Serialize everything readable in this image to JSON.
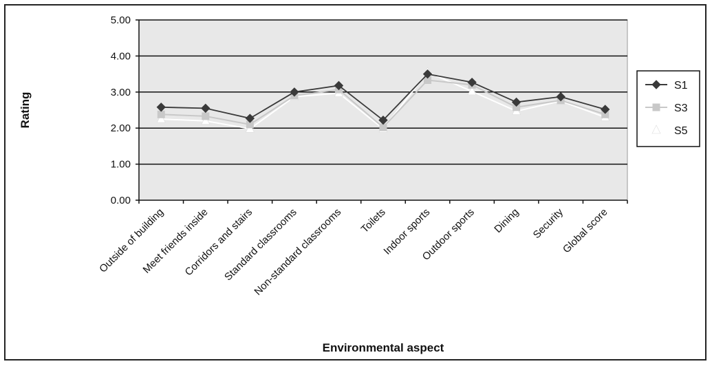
{
  "chart_data": {
    "type": "line",
    "categories": [
      "Outside of building",
      "Meet friends inside",
      "Corridors and stairs",
      "Standard classrooms",
      "Non-standard classrooms",
      "Toilets",
      "Indoor sports",
      "Outdoor sports",
      "Dining",
      "Security",
      "Global score"
    ],
    "series": [
      {
        "name": "S1",
        "color": "#3a3a3a",
        "marker": "diamond",
        "values": [
          2.58,
          2.55,
          2.27,
          3.0,
          3.18,
          2.22,
          3.5,
          3.27,
          2.72,
          2.87,
          2.52
        ]
      },
      {
        "name": "S3",
        "color": "#c8c8c8",
        "marker": "square",
        "values": [
          2.38,
          2.33,
          2.1,
          2.9,
          3.07,
          2.02,
          3.33,
          3.2,
          2.58,
          2.77,
          2.38
        ]
      },
      {
        "name": "S5",
        "color": "#ffffff",
        "marker": "triangle",
        "values": [
          2.25,
          2.2,
          1.98,
          2.87,
          2.97,
          1.98,
          3.55,
          3.02,
          2.47,
          2.75,
          2.3
        ]
      }
    ],
    "title": "",
    "xlabel": "Environmental aspect",
    "ylabel": "Rating",
    "ylim": [
      0,
      5
    ],
    "yticks": [
      "0.00",
      "1.00",
      "2.00",
      "3.00",
      "4.00",
      "5.00"
    ],
    "grid": true,
    "legend": "right"
  }
}
